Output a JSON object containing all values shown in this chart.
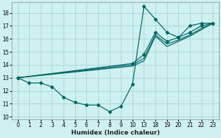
{
  "background_color": "#cff0f0",
  "grid_color": "#a8d8d8",
  "line_color": "#006666",
  "tick_labels": [
    "0",
    "1",
    "2",
    "3",
    "4",
    "5",
    "6",
    "7",
    "8",
    "9",
    "10",
    "13",
    "18",
    "19",
    "20",
    "21",
    "22",
    "23"
  ],
  "yticks": [
    10,
    11,
    12,
    13,
    14,
    15,
    16,
    17,
    18
  ],
  "xlabel": "Humidex (Indice chaleur)",
  "series": [
    {
      "xi": [
        0,
        1,
        2,
        3,
        4,
        5,
        6,
        7,
        8,
        9,
        10,
        11,
        12,
        13,
        14,
        15,
        16,
        17
      ],
      "y": [
        13,
        12.6,
        12.6,
        12.3,
        11.5,
        11.1,
        10.9,
        10.9,
        10.4,
        10.8,
        12.5,
        18.5,
        17.5,
        16.5,
        16.1,
        17.0,
        17.2,
        17.2
      ],
      "linestyle": "-",
      "markers": true
    },
    {
      "xi": [
        0,
        10,
        11,
        12,
        13,
        14,
        15,
        16,
        17
      ],
      "y": [
        13,
        14.1,
        14.8,
        16.5,
        15.8,
        16.1,
        16.5,
        17.0,
        17.2
      ],
      "linestyle": "-",
      "markers": true
    },
    {
      "xi": [
        0,
        10,
        11,
        12,
        13,
        14,
        15,
        16,
        17
      ],
      "y": [
        13,
        14.0,
        14.5,
        16.3,
        15.6,
        15.9,
        16.3,
        16.8,
        17.2
      ],
      "linestyle": "-",
      "markers": false
    },
    {
      "xi": [
        0,
        10,
        11,
        12,
        13,
        14,
        15,
        16,
        17
      ],
      "y": [
        13,
        13.9,
        14.3,
        16.2,
        15.4,
        15.8,
        16.2,
        16.7,
        17.2
      ],
      "linestyle": "-",
      "markers": false
    }
  ]
}
